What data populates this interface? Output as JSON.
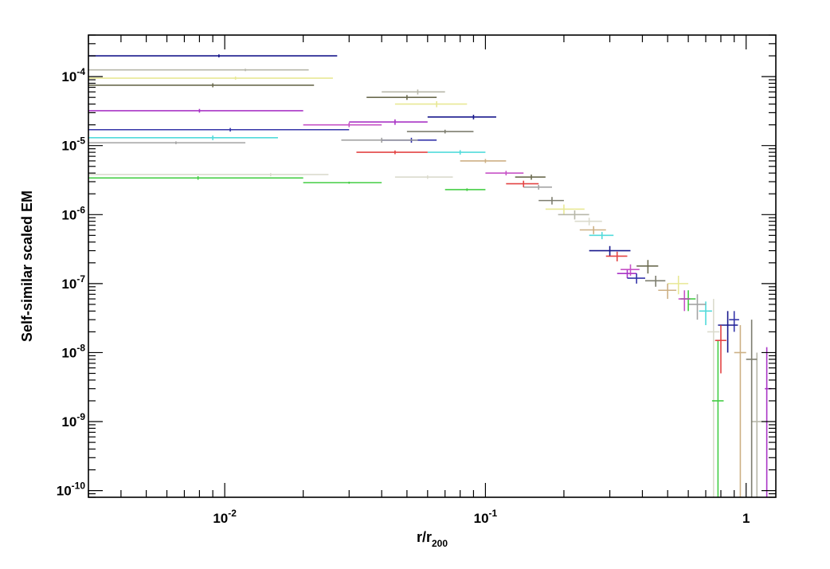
{
  "chart_data": {
    "type": "scatter",
    "title": "",
    "xlabel": {
      "base": "r/r",
      "subscript": "200"
    },
    "ylabel": "Self-similar scaled EM",
    "xscale": "log",
    "yscale": "log",
    "xlim": [
      0.003,
      1.3
    ],
    "ylim": [
      8e-11,
      0.0004
    ],
    "grid": false,
    "legend": "none",
    "x_ticks": [
      {
        "value": 0.01,
        "base": "10",
        "exp": "-2"
      },
      {
        "value": 0.1,
        "base": "10",
        "exp": "-1"
      },
      {
        "value": 1,
        "base": "1",
        "exp": ""
      }
    ],
    "y_ticks": [
      {
        "value": 0.0001,
        "base": "10",
        "exp": "-4"
      },
      {
        "value": 1e-05,
        "base": "10",
        "exp": "-5"
      },
      {
        "value": 1e-06,
        "base": "10",
        "exp": "-6"
      },
      {
        "value": 1e-07,
        "base": "10",
        "exp": "-7"
      },
      {
        "value": 1e-08,
        "base": "10",
        "exp": "-8"
      },
      {
        "value": 1e-09,
        "base": "10",
        "exp": "-9"
      },
      {
        "value": 1e-10,
        "base": "10",
        "exp": "-10"
      }
    ],
    "series": [
      {
        "color": "#000080",
        "points": [
          {
            "x": 0.0095,
            "y": 0.0002,
            "xlo": 0.003,
            "xhi": 0.027,
            "ylo": 0.00019,
            "yhi": 0.00021
          },
          {
            "x": 0.09,
            "y": 2.6e-05,
            "xlo": 0.06,
            "xhi": 0.11,
            "ylo": 2.4e-05,
            "yhi": 2.8e-05
          },
          {
            "x": 0.3,
            "y": 3e-07,
            "xlo": 0.25,
            "xhi": 0.36,
            "ylo": 2.5e-07,
            "yhi": 3.5e-07
          },
          {
            "x": 0.85,
            "y": 2.5e-08,
            "xlo": 0.78,
            "xhi": 0.93,
            "ylo": 1e-08,
            "yhi": 4e-08
          }
        ]
      },
      {
        "color": "#e6e68a",
        "points": [
          {
            "x": 0.011,
            "y": 9.5e-05,
            "xlo": 0.003,
            "xhi": 0.026,
            "ylo": 9e-05,
            "yhi": 0.0001
          },
          {
            "x": 0.065,
            "y": 4e-05,
            "xlo": 0.045,
            "xhi": 0.085,
            "ylo": 3.6e-05,
            "yhi": 4.4e-05
          },
          {
            "x": 0.2,
            "y": 1.2e-06,
            "xlo": 0.17,
            "xhi": 0.24,
            "ylo": 1e-06,
            "yhi": 1.4e-06
          },
          {
            "x": 0.55,
            "y": 1e-07,
            "xlo": 0.5,
            "xhi": 0.6,
            "ylo": 7e-08,
            "yhi": 1.3e-07
          }
        ]
      },
      {
        "color": "#5c5c3d",
        "points": [
          {
            "x": 0.009,
            "y": 7.5e-05,
            "xlo": 0.003,
            "xhi": 0.022,
            "ylo": 7e-05,
            "yhi": 8e-05
          },
          {
            "x": 0.05,
            "y": 5e-05,
            "xlo": 0.035,
            "xhi": 0.065,
            "ylo": 4.6e-05,
            "yhi": 5.4e-05
          },
          {
            "x": 0.15,
            "y": 3.5e-06,
            "xlo": 0.13,
            "xhi": 0.17,
            "ylo": 3.2e-06,
            "yhi": 3.8e-06
          },
          {
            "x": 0.42,
            "y": 1.8e-07,
            "xlo": 0.38,
            "xhi": 0.46,
            "ylo": 1.4e-07,
            "yhi": 2.2e-07
          }
        ]
      },
      {
        "color": "#b0b0a0",
        "points": [
          {
            "x": 0.012,
            "y": 0.000125,
            "xlo": 0.003,
            "xhi": 0.021,
            "ylo": 0.00012,
            "yhi": 0.00013
          },
          {
            "x": 0.055,
            "y": 6e-05,
            "xlo": 0.04,
            "xhi": 0.07,
            "ylo": 5.5e-05,
            "yhi": 6.5e-05
          },
          {
            "x": 0.22,
            "y": 1e-06,
            "xlo": 0.19,
            "xhi": 0.25,
            "ylo": 8.5e-07,
            "yhi": 1.15e-06
          },
          {
            "x": 1.1,
            "y": 1e-09,
            "xlo": 1.05,
            "xhi": 1.15,
            "ylo": 8e-11,
            "yhi": 1e-08
          }
        ]
      },
      {
        "color": "#a020c0",
        "points": [
          {
            "x": 0.008,
            "y": 3.2e-05,
            "xlo": 0.003,
            "xhi": 0.02,
            "ylo": 3e-05,
            "yhi": 3.4e-05
          },
          {
            "x": 0.045,
            "y": 2.2e-05,
            "xlo": 0.03,
            "xhi": 0.06,
            "ylo": 2e-05,
            "yhi": 2.4e-05
          },
          {
            "x": 0.35,
            "y": 1.4e-07,
            "xlo": 0.32,
            "xhi": 0.38,
            "ylo": 1.2e-07,
            "yhi": 1.6e-07
          },
          {
            "x": 1.2,
            "y": 3e-09,
            "xlo": 1.18,
            "xhi": 1.25,
            "ylo": 8e-11,
            "yhi": 1.2e-08
          }
        ]
      },
      {
        "color": "#2020a0",
        "points": [
          {
            "x": 0.0105,
            "y": 1.7e-05,
            "xlo": 0.003,
            "xhi": 0.03,
            "ylo": 1.6e-05,
            "yhi": 1.8e-05
          },
          {
            "x": 0.052,
            "y": 1.2e-05,
            "xlo": 0.04,
            "xhi": 0.065,
            "ylo": 1.1e-05,
            "yhi": 1.3e-05
          },
          {
            "x": 0.38,
            "y": 1.2e-07,
            "xlo": 0.35,
            "xhi": 0.41,
            "ylo": 1e-07,
            "yhi": 1.4e-07
          },
          {
            "x": 0.9,
            "y": 3e-08,
            "xlo": 0.86,
            "xhi": 0.94,
            "ylo": 2e-08,
            "yhi": 4e-08
          }
        ]
      },
      {
        "color": "#40d8d8",
        "points": [
          {
            "x": 0.009,
            "y": 1.3e-05,
            "xlo": 0.003,
            "xhi": 0.016,
            "ylo": 1.2e-05,
            "yhi": 1.4e-05
          },
          {
            "x": 0.08,
            "y": 8e-06,
            "xlo": 0.06,
            "xhi": 0.1,
            "ylo": 7.4e-06,
            "yhi": 8.6e-06
          },
          {
            "x": 0.28,
            "y": 5e-07,
            "xlo": 0.25,
            "xhi": 0.31,
            "ylo": 4.4e-07,
            "yhi": 5.6e-07
          },
          {
            "x": 0.7,
            "y": 4e-08,
            "xlo": 0.66,
            "xhi": 0.74,
            "ylo": 2.5e-08,
            "yhi": 5.5e-08
          }
        ]
      },
      {
        "color": "#9a9a9a",
        "points": [
          {
            "x": 0.0065,
            "y": 1.1e-05,
            "xlo": 0.003,
            "xhi": 0.012,
            "ylo": 1.05e-05,
            "yhi": 1.15e-05
          },
          {
            "x": 0.04,
            "y": 1.2e-05,
            "xlo": 0.028,
            "xhi": 0.055,
            "ylo": 1.1e-05,
            "yhi": 1.3e-05
          },
          {
            "x": 0.16,
            "y": 2.5e-06,
            "xlo": 0.14,
            "xhi": 0.18,
            "ylo": 2.3e-06,
            "yhi": 2.7e-06
          },
          {
            "x": 0.65,
            "y": 5e-08,
            "xlo": 0.6,
            "xhi": 0.7,
            "ylo": 3e-08,
            "yhi": 7e-08
          }
        ]
      },
      {
        "color": "#d8d8c8",
        "points": [
          {
            "x": 0.015,
            "y": 3.8e-06,
            "xlo": 0.003,
            "xhi": 0.025,
            "ylo": 3.6e-06,
            "yhi": 4e-06
          },
          {
            "x": 0.06,
            "y": 3.5e-06,
            "xlo": 0.045,
            "xhi": 0.075,
            "ylo": 3.3e-06,
            "yhi": 3.7e-06
          },
          {
            "x": 0.25,
            "y": 8e-07,
            "xlo": 0.22,
            "xhi": 0.28,
            "ylo": 7e-07,
            "yhi": 9e-07
          },
          {
            "x": 0.75,
            "y": 2e-08,
            "xlo": 0.71,
            "xhi": 0.79,
            "ylo": 8e-11,
            "yhi": 6e-08
          }
        ]
      },
      {
        "color": "#30c830",
        "points": [
          {
            "x": 0.0079,
            "y": 3.4e-06,
            "xlo": 0.003,
            "xhi": 0.02,
            "ylo": 3.2e-06,
            "yhi": 3.6e-06
          },
          {
            "x": 0.03,
            "y": 2.9e-06,
            "xlo": 0.02,
            "xhi": 0.04,
            "ylo": 2.8e-06,
            "yhi": 3e-06
          },
          {
            "x": 0.085,
            "y": 2.3e-06,
            "xlo": 0.07,
            "xhi": 0.1,
            "ylo": 2.2e-06,
            "yhi": 2.4e-06
          },
          {
            "x": 0.6,
            "y": 6e-08,
            "xlo": 0.56,
            "xhi": 0.64,
            "ylo": 4e-08,
            "yhi": 8e-08
          },
          {
            "x": 0.78,
            "y": 2e-09,
            "xlo": 0.74,
            "xhi": 0.82,
            "ylo": 8e-11,
            "yhi": 1.5e-08
          }
        ]
      },
      {
        "color": "#e03030",
        "points": [
          {
            "x": 0.045,
            "y": 8e-06,
            "xlo": 0.032,
            "xhi": 0.06,
            "ylo": 7.5e-06,
            "yhi": 8.5e-06
          },
          {
            "x": 0.14,
            "y": 2.8e-06,
            "xlo": 0.12,
            "xhi": 0.16,
            "ylo": 2.5e-06,
            "yhi": 3.1e-06
          },
          {
            "x": 0.32,
            "y": 2.5e-07,
            "xlo": 0.29,
            "xhi": 0.35,
            "ylo": 2.1e-07,
            "yhi": 2.9e-07
          },
          {
            "x": 0.8,
            "y": 1.5e-08,
            "xlo": 0.76,
            "xhi": 0.84,
            "ylo": 5e-09,
            "yhi": 2.5e-08
          }
        ]
      },
      {
        "color": "#c040c0",
        "points": [
          {
            "x": 0.03,
            "y": 2e-05,
            "xlo": 0.02,
            "xhi": 0.04,
            "ylo": 1.85e-05,
            "yhi": 2.15e-05
          },
          {
            "x": 0.12,
            "y": 4e-06,
            "xlo": 0.1,
            "xhi": 0.14,
            "ylo": 3.7e-06,
            "yhi": 4.3e-06
          },
          {
            "x": 0.36,
            "y": 1.6e-07,
            "xlo": 0.33,
            "xhi": 0.39,
            "ylo": 1.3e-07,
            "yhi": 1.9e-07
          },
          {
            "x": 0.58,
            "y": 6e-08,
            "xlo": 0.55,
            "xhi": 0.61,
            "ylo": 4e-08,
            "yhi": 8e-08
          }
        ]
      },
      {
        "color": "#707060",
        "points": [
          {
            "x": 0.07,
            "y": 1.6e-05,
            "xlo": 0.05,
            "xhi": 0.09,
            "ylo": 1.5e-05,
            "yhi": 1.7e-05
          },
          {
            "x": 0.18,
            "y": 1.6e-06,
            "xlo": 0.16,
            "xhi": 0.2,
            "ylo": 1.4e-06,
            "yhi": 1.8e-06
          },
          {
            "x": 0.45,
            "y": 1.1e-07,
            "xlo": 0.41,
            "xhi": 0.49,
            "ylo": 9e-08,
            "yhi": 1.3e-07
          },
          {
            "x": 1.05,
            "y": 8e-09,
            "xlo": 1.0,
            "xhi": 1.1,
            "ylo": 8e-11,
            "yhi": 3e-08
          }
        ]
      },
      {
        "color": "#c8a878",
        "points": [
          {
            "x": 0.1,
            "y": 6e-06,
            "xlo": 0.08,
            "xhi": 0.12,
            "ylo": 5.6e-06,
            "yhi": 6.4e-06
          },
          {
            "x": 0.26,
            "y": 6e-07,
            "xlo": 0.23,
            "xhi": 0.29,
            "ylo": 5.2e-07,
            "yhi": 6.8e-07
          },
          {
            "x": 0.5,
            "y": 8e-08,
            "xlo": 0.46,
            "xhi": 0.54,
            "ylo": 6e-08,
            "yhi": 1e-07
          },
          {
            "x": 0.95,
            "y": 1e-08,
            "xlo": 0.9,
            "xhi": 1.0,
            "ylo": 8e-11,
            "yhi": 2.5e-08
          }
        ]
      }
    ]
  }
}
